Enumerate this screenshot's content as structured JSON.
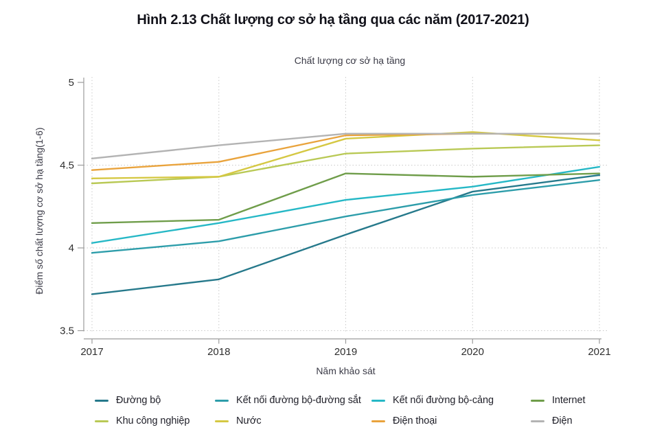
{
  "figure_title": "Hình 2.13 Chất lượng cơ sở hạ tầng qua các năm (2017-2021)",
  "chart_data": {
    "type": "line",
    "title": "Chất lượng cơ sở hạ tầng",
    "xlabel": "Năm khảo sát",
    "ylabel": "Điểm số chất lượng cơ sở hạ tầng(1-6)",
    "x": [
      "2017",
      "2018",
      "2019",
      "2020",
      "2021"
    ],
    "yticks": [
      "5",
      "4.5",
      "4",
      "3.5"
    ],
    "ylim": [
      3.5,
      5
    ],
    "grid": "dotted",
    "legend_position": "bottom",
    "axis_color": "#9b9b9b",
    "gridline_color": "#c9c9c9",
    "series": [
      {
        "name": "Đường bộ",
        "color": "#26798b",
        "values": [
          3.72,
          3.81,
          4.08,
          4.34,
          4.44
        ]
      },
      {
        "name": "Kết nối đường bộ-đường sắt",
        "color": "#2d9daa",
        "values": [
          3.97,
          4.04,
          4.19,
          4.32,
          4.41
        ]
      },
      {
        "name": "Kết nối đường bộ-cảng",
        "color": "#26b8c6",
        "values": [
          4.03,
          4.15,
          4.29,
          4.37,
          4.49
        ]
      },
      {
        "name": "Internet",
        "color": "#6f9d4a",
        "values": [
          4.15,
          4.17,
          4.45,
          4.43,
          4.45
        ]
      },
      {
        "name": "Khu công nghiệp",
        "color": "#b9c955",
        "values": [
          4.39,
          4.43,
          4.57,
          4.6,
          4.62
        ]
      },
      {
        "name": "Nước",
        "color": "#d5c843",
        "values": [
          4.42,
          4.43,
          4.66,
          4.7,
          4.65
        ]
      },
      {
        "name": "Điện thoại",
        "color": "#e9a33c",
        "values": [
          4.47,
          4.52,
          4.68,
          4.69,
          4.69
        ]
      },
      {
        "name": "Điện",
        "color": "#b3b3b3",
        "values": [
          4.54,
          4.62,
          4.69,
          4.69,
          4.69
        ]
      }
    ]
  }
}
